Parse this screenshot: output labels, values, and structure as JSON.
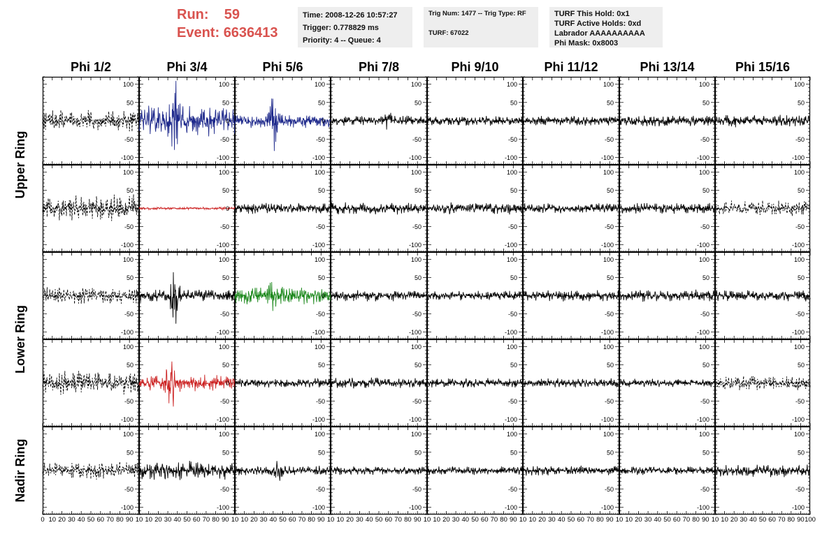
{
  "header": {
    "run_label": "Run:",
    "run_value": "59",
    "event_label": "Event:",
    "event_value": "6636413",
    "time_line": "Time: 2008-12-26 10:57:27",
    "trigger_line": "Trigger: 0.778829 ms",
    "priority_line": "Priority: 4 -- Queue: 4",
    "trig_line": "Trig Num: 1477 -- Trig Type: RF",
    "turf_line": "TURF: 67022",
    "turf_hold_line": "TURF This Hold: 0x1",
    "turf_active_line": "TURF Active Holds: 0xd",
    "labrador_line": "Labrador AAAAAAAAAA",
    "phi_mask_line": "Phi Mask: 0x8003",
    "accent_color": "#d9534f"
  },
  "chart_data": {
    "type": "line",
    "columns": [
      "Phi 1/2",
      "Phi 3/4",
      "Phi 5/6",
      "Phi 7/8",
      "Phi 9/10",
      "Phi 11/12",
      "Phi 13/14",
      "Phi 15/16"
    ],
    "rings": [
      "Upper Ring",
      "Upper Ring",
      "Lower Ring",
      "Lower Ring",
      "Nadir Ring"
    ],
    "ring_labels": [
      {
        "label": "Upper Ring",
        "rows": [
          0,
          1
        ]
      },
      {
        "label": "Lower Ring",
        "rows": [
          2,
          3
        ]
      },
      {
        "label": "Nadir Ring",
        "rows": [
          4,
          4
        ]
      }
    ],
    "xlim": [
      0,
      100
    ],
    "ylim": [
      -120,
      120
    ],
    "y_ticks": [
      -100,
      -50,
      0,
      50,
      100
    ],
    "x_ticks": [
      0,
      10,
      20,
      30,
      40,
      50,
      60,
      70,
      80,
      90,
      100
    ],
    "x_tick_labels_first": [
      "0",
      "10",
      "20",
      "30",
      "40",
      "50",
      "60",
      "70",
      "80",
      "90",
      "10"
    ],
    "x_tick_labels_mid": [
      "10",
      "20",
      "30",
      "40",
      "50",
      "60",
      "70",
      "80",
      "90",
      "10"
    ],
    "x_tick_labels_last": [
      "10",
      "20",
      "30",
      "40",
      "50",
      "60",
      "70",
      "80",
      "90",
      "100"
    ],
    "grid": false,
    "colors": {
      "black": "#000000",
      "blue": "#1f2a8c",
      "red": "#cc2222",
      "green": "#1f8a1f"
    },
    "panels": [
      [
        {
          "color": "black",
          "style": "dashed",
          "amp": 30,
          "burst": null
        },
        {
          "color": "blue",
          "style": "solid",
          "amp": 45,
          "burst": {
            "x": 37,
            "peak": 120
          }
        },
        {
          "color": "blue",
          "style": "solid",
          "amp": 20,
          "burst": {
            "x": 40,
            "peak": 100
          }
        },
        {
          "color": "black",
          "style": "solid",
          "amp": 14,
          "burst": {
            "x": 60,
            "peak": 30
          }
        },
        {
          "color": "black",
          "style": "solid",
          "amp": 14,
          "burst": null
        },
        {
          "color": "black",
          "style": "solid",
          "amp": 14,
          "burst": null
        },
        {
          "color": "black",
          "style": "solid",
          "amp": 16,
          "burst": null
        },
        {
          "color": "black",
          "style": "solid",
          "amp": 18,
          "burst": null
        }
      ],
      [
        {
          "color": "black",
          "style": "dashed",
          "amp": 40,
          "burst": null
        },
        {
          "color": "red",
          "style": "solid",
          "amp": 4,
          "burst": null
        },
        {
          "color": "black",
          "style": "solid",
          "amp": 16,
          "burst": null
        },
        {
          "color": "black",
          "style": "solid",
          "amp": 18,
          "burst": null
        },
        {
          "color": "black",
          "style": "solid",
          "amp": 18,
          "burst": null
        },
        {
          "color": "black",
          "style": "solid",
          "amp": 16,
          "burst": null
        },
        {
          "color": "black",
          "style": "solid",
          "amp": 16,
          "burst": null
        },
        {
          "color": "black",
          "style": "dashed",
          "amp": 22,
          "burst": null
        }
      ],
      [
        {
          "color": "black",
          "style": "dashed",
          "amp": 25,
          "burst": null
        },
        {
          "color": "black",
          "style": "solid",
          "amp": 18,
          "burst": {
            "x": 37,
            "peak": 100
          }
        },
        {
          "color": "green",
          "style": "solid",
          "amp": 25,
          "burst": {
            "x": 40,
            "peak": 50
          }
        },
        {
          "color": "black",
          "style": "solid",
          "amp": 16,
          "burst": null
        },
        {
          "color": "black",
          "style": "solid",
          "amp": 14,
          "burst": null
        },
        {
          "color": "black",
          "style": "solid",
          "amp": 16,
          "burst": null
        },
        {
          "color": "black",
          "style": "solid",
          "amp": 18,
          "burst": null
        },
        {
          "color": "black",
          "style": "solid",
          "amp": 16,
          "burst": null
        }
      ],
      [
        {
          "color": "black",
          "style": "dashed",
          "amp": 35,
          "burst": null
        },
        {
          "color": "red",
          "style": "solid",
          "amp": 25,
          "burst": {
            "x": 33,
            "peak": 100
          }
        },
        {
          "color": "black",
          "style": "solid",
          "amp": 14,
          "burst": null
        },
        {
          "color": "black",
          "style": "solid",
          "amp": 15,
          "burst": null
        },
        {
          "color": "black",
          "style": "solid",
          "amp": 14,
          "burst": null
        },
        {
          "color": "black",
          "style": "solid",
          "amp": 13,
          "burst": null
        },
        {
          "color": "black",
          "style": "solid",
          "amp": 12,
          "burst": null
        },
        {
          "color": "black",
          "style": "dashed",
          "amp": 20,
          "burst": null
        }
      ],
      [
        {
          "color": "black",
          "style": "dashed",
          "amp": 25,
          "burst": null
        },
        {
          "color": "black",
          "style": "solid",
          "amp": 28,
          "burst": null
        },
        {
          "color": "black",
          "style": "solid",
          "amp": 14,
          "burst": {
            "x": 45,
            "peak": 35
          }
        },
        {
          "color": "black",
          "style": "solid",
          "amp": 12,
          "burst": null
        },
        {
          "color": "black",
          "style": "solid",
          "amp": 12,
          "burst": null
        },
        {
          "color": "black",
          "style": "solid",
          "amp": 14,
          "burst": null
        },
        {
          "color": "black",
          "style": "solid",
          "amp": 12,
          "burst": null
        },
        {
          "color": "black",
          "style": "solid",
          "amp": 18,
          "burst": null
        }
      ]
    ]
  }
}
